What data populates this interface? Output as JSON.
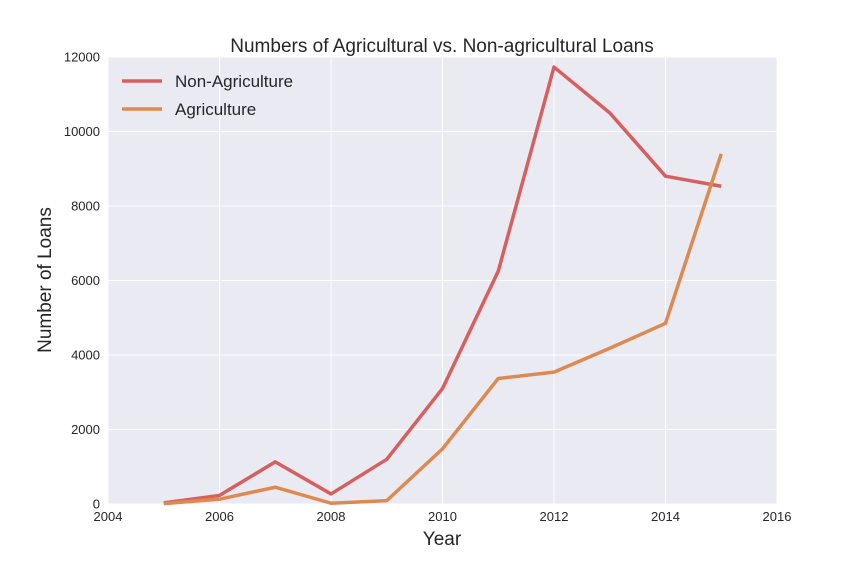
{
  "chart_data": {
    "type": "line",
    "title": "Numbers of Agricultural vs. Non-agricultural Loans",
    "xlabel": "Year",
    "ylabel": "Number of  Loans",
    "xlim": [
      2004,
      2016
    ],
    "ylim": [
      0,
      12000
    ],
    "xticks": [
      "2004",
      "2006",
      "2008",
      "2010",
      "2012",
      "2014",
      "2016"
    ],
    "yticks": [
      "0",
      "2000",
      "4000",
      "6000",
      "8000",
      "10000",
      "12000"
    ],
    "grid": true,
    "legend_position": "top-left",
    "x": [
      2005,
      2006,
      2007,
      2008,
      2009,
      2010,
      2011,
      2012,
      2013,
      2014,
      2015
    ],
    "series": [
      {
        "name": "Non-Agriculture",
        "color": "#d65f5f",
        "values": [
          30,
          230,
          1130,
          270,
          1200,
          3100,
          6250,
          11730,
          10500,
          8800,
          8530
        ]
      },
      {
        "name": "Agriculture",
        "color": "#dd8a52",
        "values": [
          10,
          130,
          450,
          20,
          90,
          1480,
          3370,
          3540,
          4180,
          4850,
          9400
        ]
      }
    ]
  }
}
